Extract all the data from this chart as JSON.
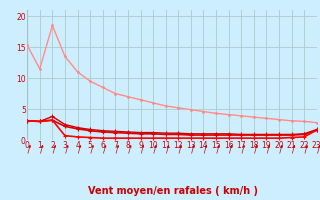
{
  "bg_color": "#cceeff",
  "grid_color": "#aacccc",
  "xlabel": "Vent moyen/en rafales ( km/h )",
  "xlabel_color": "#cc0000",
  "xlabel_fontsize": 7,
  "tick_color": "#cc0000",
  "tick_fontsize": 5.5,
  "ylim": [
    0,
    21
  ],
  "xlim": [
    0,
    23
  ],
  "yticks": [
    0,
    5,
    10,
    15,
    20
  ],
  "xticks": [
    0,
    1,
    2,
    3,
    4,
    5,
    6,
    7,
    8,
    9,
    10,
    11,
    12,
    13,
    14,
    15,
    16,
    17,
    18,
    19,
    20,
    21,
    22,
    23
  ],
  "line1_x": [
    0,
    1,
    2,
    3,
    4,
    5,
    6,
    7,
    8,
    9,
    10,
    11,
    12,
    13,
    14,
    15,
    16,
    17,
    18,
    19,
    20,
    21,
    22,
    23
  ],
  "line1_y": [
    15.3,
    11.5,
    18.5,
    13.5,
    11.0,
    9.5,
    8.5,
    7.5,
    7.0,
    6.5,
    6.0,
    5.5,
    5.2,
    4.9,
    4.6,
    4.3,
    4.1,
    3.9,
    3.7,
    3.5,
    3.3,
    3.1,
    3.0,
    2.8
  ],
  "line1_color": "#ffbbbb",
  "line1_lw": 1.0,
  "line2_x": [
    0,
    1,
    2,
    3,
    4,
    5,
    6,
    7,
    8,
    9,
    10,
    11,
    12,
    13,
    14,
    15,
    16,
    17,
    18,
    19,
    20,
    21,
    22,
    23
  ],
  "line2_y": [
    15.3,
    11.5,
    18.5,
    13.5,
    11.0,
    9.5,
    8.5,
    7.5,
    7.0,
    6.5,
    6.0,
    5.5,
    5.2,
    4.9,
    4.6,
    4.3,
    4.1,
    3.9,
    3.7,
    3.5,
    3.3,
    3.1,
    3.0,
    2.8
  ],
  "line2_color": "#ff8888",
  "line2_lw": 0.8,
  "line3_x": [
    0,
    1,
    2,
    3,
    4,
    5,
    6,
    7,
    8,
    9,
    10,
    11,
    12,
    13,
    14,
    15,
    16,
    17,
    18,
    19,
    20,
    21,
    22,
    23
  ],
  "line3_y": [
    3.1,
    3.0,
    3.2,
    2.2,
    1.8,
    1.5,
    1.3,
    1.2,
    1.1,
    1.0,
    1.0,
    0.9,
    0.9,
    0.8,
    0.8,
    0.8,
    0.8,
    0.8,
    0.8,
    0.8,
    0.8,
    0.8,
    0.9,
    1.6
  ],
  "line3_color": "#dd0000",
  "line3_lw": 1.2,
  "line4_x": [
    0,
    1,
    2,
    3,
    4,
    5,
    6,
    7,
    8,
    9,
    10,
    11,
    12,
    13,
    14,
    15,
    16,
    17,
    18,
    19,
    20,
    21,
    22,
    23
  ],
  "line4_y": [
    3.1,
    3.0,
    3.2,
    0.7,
    0.5,
    0.4,
    0.3,
    0.3,
    0.3,
    0.3,
    0.3,
    0.3,
    0.3,
    0.3,
    0.3,
    0.3,
    0.3,
    0.3,
    0.3,
    0.3,
    0.3,
    0.4,
    0.5,
    1.6
  ],
  "line4_color": "#ff0000",
  "line4_lw": 1.2,
  "line5_x": [
    0,
    1,
    2,
    3,
    4,
    5,
    6,
    7,
    8,
    9,
    10,
    11,
    12,
    13,
    14,
    15,
    16,
    17,
    18,
    19,
    20,
    21,
    22,
    23
  ],
  "line5_y": [
    3.1,
    3.0,
    3.8,
    2.5,
    2.0,
    1.7,
    1.5,
    1.4,
    1.3,
    1.2,
    1.2,
    1.1,
    1.1,
    1.0,
    1.0,
    1.0,
    1.0,
    0.9,
    0.9,
    0.9,
    0.9,
    0.9,
    1.0,
    1.7
  ],
  "line5_color": "#cc0000",
  "line5_lw": 1.0,
  "arrow_color": "#cc0000"
}
